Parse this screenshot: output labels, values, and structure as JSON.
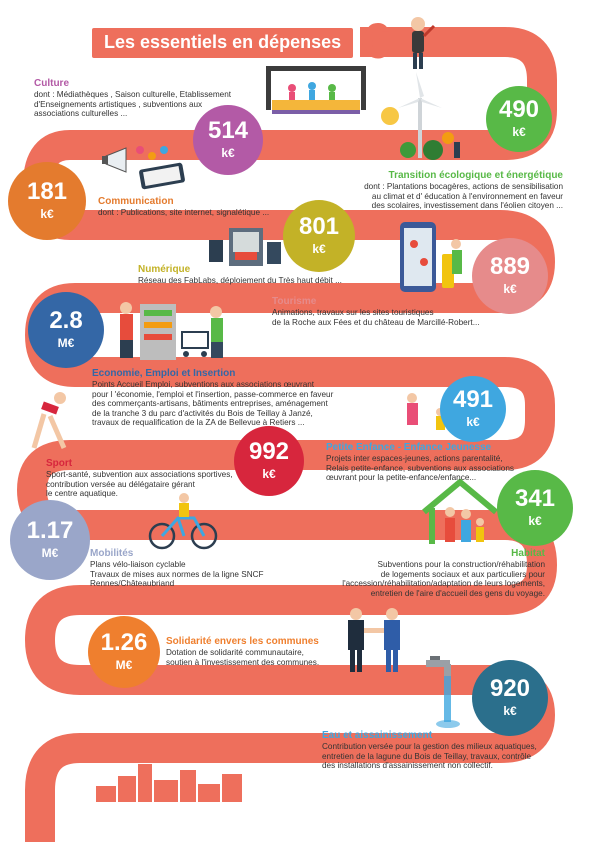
{
  "title": "Les essentiels en dépenses",
  "colors": {
    "road": "#ee6f5c",
    "culture": "#b35aa6",
    "transition": "#58b947",
    "communication": "#e47b2e",
    "numerique": "#c3b227",
    "tourisme": "#e68b8b",
    "economie": "#3467a6",
    "enfance": "#3fa7e0",
    "sport": "#d7263d",
    "habitat": "#58b947",
    "mobilites": "#9aa6c9",
    "solidarite": "#ef7f2e",
    "eau": "#2b6f8c"
  },
  "sections": {
    "culture": {
      "title": "Culture",
      "desc": "dont : Médiathèques , Saison culturelle, Etablissement\nd'Enseignements artistiques , subventions aux\nassociations culturelles ...",
      "amount": "514",
      "unit": "k€"
    },
    "transition": {
      "title": "Transition écologique et énergétique",
      "desc": "dont : Plantations bocagères, actions de sensibilisation\nau climat et d' éducation à l'environnement en faveur\ndes scolaires, investissement dans l'éolien citoyen ...",
      "amount": "490",
      "unit": "k€"
    },
    "communication": {
      "title": "Communication",
      "desc": "dont : Publications, site internet, signalétique ...",
      "amount": "181",
      "unit": "k€"
    },
    "numerique": {
      "title": "Numérique",
      "desc": "Réseau des FabLabs, déploiement du Très haut débit ...",
      "amount": "801",
      "unit": "k€"
    },
    "tourisme": {
      "title": "Tourisme",
      "desc": "Animations, travaux sur les sites touristiques\nde la Roche aux Fées et du château de Marcillé-Robert...",
      "amount": "889",
      "unit": "k€"
    },
    "economie": {
      "title": "Economie, Emploi et Insertion",
      "desc": "Points Accueil Emploi, subventions aux associations œuvrant\npour l 'économie, l'emploi et l'insertion, passe-commerce en faveur\ndes commerçants-artisans, bâtiments entreprises, aménagement\nde la tranche 3 du parc d'activités du Bois de Teillay à Janzé,\ntravaux de requalification de la ZA de Bellevue à Retiers ...",
      "amount": "2.8",
      "unit": "M€"
    },
    "enfance": {
      "title": "Petite Enfance - Enfance Jeunesse",
      "desc": "Projets inter espaces-jeunes, actions parentalité,\nRelais petite-enfance, subventions aux associations\nœuvrant pour la petite-enfance/enfance...",
      "amount": "491",
      "unit": "k€"
    },
    "sport": {
      "title": "Sport",
      "desc": "Sport-santé, subvention aux associations sportives,\ncontribution versée au délégataire gérant\nle centre aquatique.",
      "amount": "992",
      "unit": "k€"
    },
    "habitat": {
      "title": "Habitat",
      "desc": "Subventions  pour la construction/réhabilitation\nde logements sociaux  et aux particuliers pour\nl'accession/réhabilitation/adaptation de leurs logements,\nentretien de l'aire d'accueil des gens du voyage.",
      "amount": "341",
      "unit": "k€"
    },
    "mobilites": {
      "title": "Mobilités",
      "desc": "Plans vélo-liaison cyclable\nTravaux de mises aux normes de la ligne SNCF\nRennes/Châteaubriand",
      "amount": "1.17",
      "unit": "M€"
    },
    "solidarite": {
      "title": "Solidarité envers les communes",
      "desc": "Dotation de solidarité communautaire,\nsoutien à l'investissement des communes.",
      "amount": "1.26",
      "unit": "M€"
    },
    "eau": {
      "title": "Eau et aissainissement",
      "desc": "Contribution versée pour la gestion des milieux aquatiques,\nentretien de la lagune du Bois de Teillay, travaux, contrôle\ndes installations d'assainissement non collectif.",
      "amount": "920",
      "unit": "k€"
    }
  },
  "icons": [
    "euro-icon",
    "stage-icon",
    "wind-turbine-icon",
    "megaphone-icon",
    "printer-icon",
    "phone-map-icon",
    "market-stall-icon",
    "family-icon",
    "runner-icon",
    "house-icon",
    "bicycle-icon",
    "handshake-icon",
    "water-tap-icon",
    "city-skyline-icon"
  ]
}
